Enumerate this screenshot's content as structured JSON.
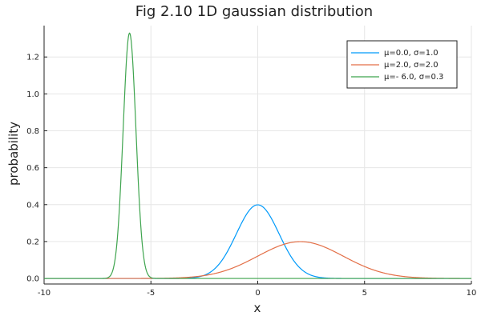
{
  "chart_data": {
    "type": "line",
    "title": "Fig 2.10 1D gaussian distribution",
    "xlabel": "x",
    "ylabel": "probability",
    "xlim": [
      -10,
      10
    ],
    "ylim": [
      -0.03,
      1.37
    ],
    "xticks": [
      -10,
      -5,
      0,
      5,
      10
    ],
    "xtick_labels": [
      "-10",
      "-5",
      "0",
      "5",
      "10"
    ],
    "yticks": [
      0,
      0.2,
      0.4,
      0.6,
      0.8,
      1.0,
      1.2
    ],
    "ytick_labels": [
      "0.0",
      "0.2",
      "0.4",
      "0.6",
      "0.8",
      "1.0",
      "1.2"
    ],
    "grid": true,
    "legend_position": "top-right",
    "series": [
      {
        "name": "μ=0.0,   σ=1.0",
        "mu": 0.0,
        "sigma": 1.0,
        "color": "#009AFA",
        "x": [
          -10,
          -4,
          -3,
          -2.5,
          -2,
          -1.5,
          -1,
          -0.5,
          0,
          0.5,
          1,
          1.5,
          2,
          2.5,
          3,
          4,
          10
        ],
        "y": [
          0.0,
          0.0001,
          0.0044,
          0.0175,
          0.054,
          0.1295,
          0.242,
          0.3521,
          0.3989,
          0.3521,
          0.242,
          0.1295,
          0.054,
          0.0175,
          0.0044,
          0.0001,
          0.0
        ]
      },
      {
        "name": "μ=2.0,   σ=2.0",
        "mu": 2.0,
        "sigma": 2.0,
        "color": "#E36F47",
        "x": [
          -10,
          -6,
          -4,
          -2,
          -1,
          0,
          1,
          2,
          3,
          4,
          5,
          6,
          8,
          10
        ],
        "y": [
          0.0,
          0.0001,
          0.0022,
          0.027,
          0.0648,
          0.121,
          0.176,
          0.1995,
          0.176,
          0.121,
          0.0648,
          0.027,
          0.0022,
          0.0001
        ]
      },
      {
        "name": "μ=- 6.0,   σ=0.3",
        "mu": -6.0,
        "sigma": 0.3,
        "color": "#3EA44E",
        "x": [
          -10,
          -7.2,
          -6.9,
          -6.6,
          -6.45,
          -6.3,
          -6.15,
          -6.0,
          -5.85,
          -5.7,
          -5.55,
          -5.4,
          -5.1,
          -4.8,
          10
        ],
        "y": [
          0.0,
          0.0004,
          0.0148,
          0.1798,
          0.4319,
          0.8066,
          1.1736,
          1.3298,
          1.1736,
          0.8066,
          0.4319,
          0.1798,
          0.0148,
          0.0004,
          0.0
        ]
      }
    ]
  }
}
